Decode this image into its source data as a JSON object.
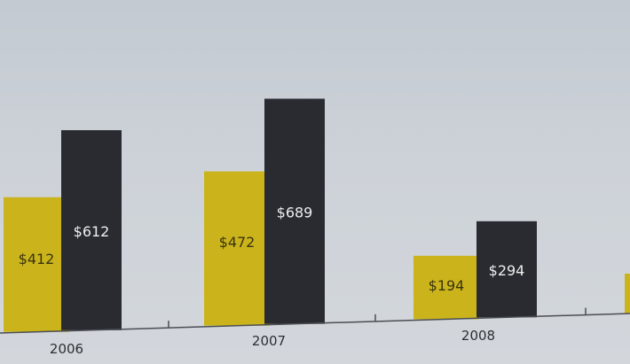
{
  "chart_data": {
    "type": "bar",
    "categories": [
      "2006",
      "2007",
      "2008"
    ],
    "series": [
      {
        "values": [
          412,
          472,
          194
        ],
        "labels": [
          "$412",
          "$472",
          "$194"
        ]
      },
      {
        "values": [
          612,
          689,
          294
        ],
        "labels": [
          "$612",
          "$689",
          "$294"
        ]
      }
    ],
    "colors": [
      "#cbb41b",
      "#2a2b30"
    ],
    "label_colors": [
      "#3a3410",
      "#eceef0"
    ],
    "axis_color": "#4a4e55",
    "tick_label_color": "#2c2f33",
    "grid": false,
    "legend": "none"
  }
}
